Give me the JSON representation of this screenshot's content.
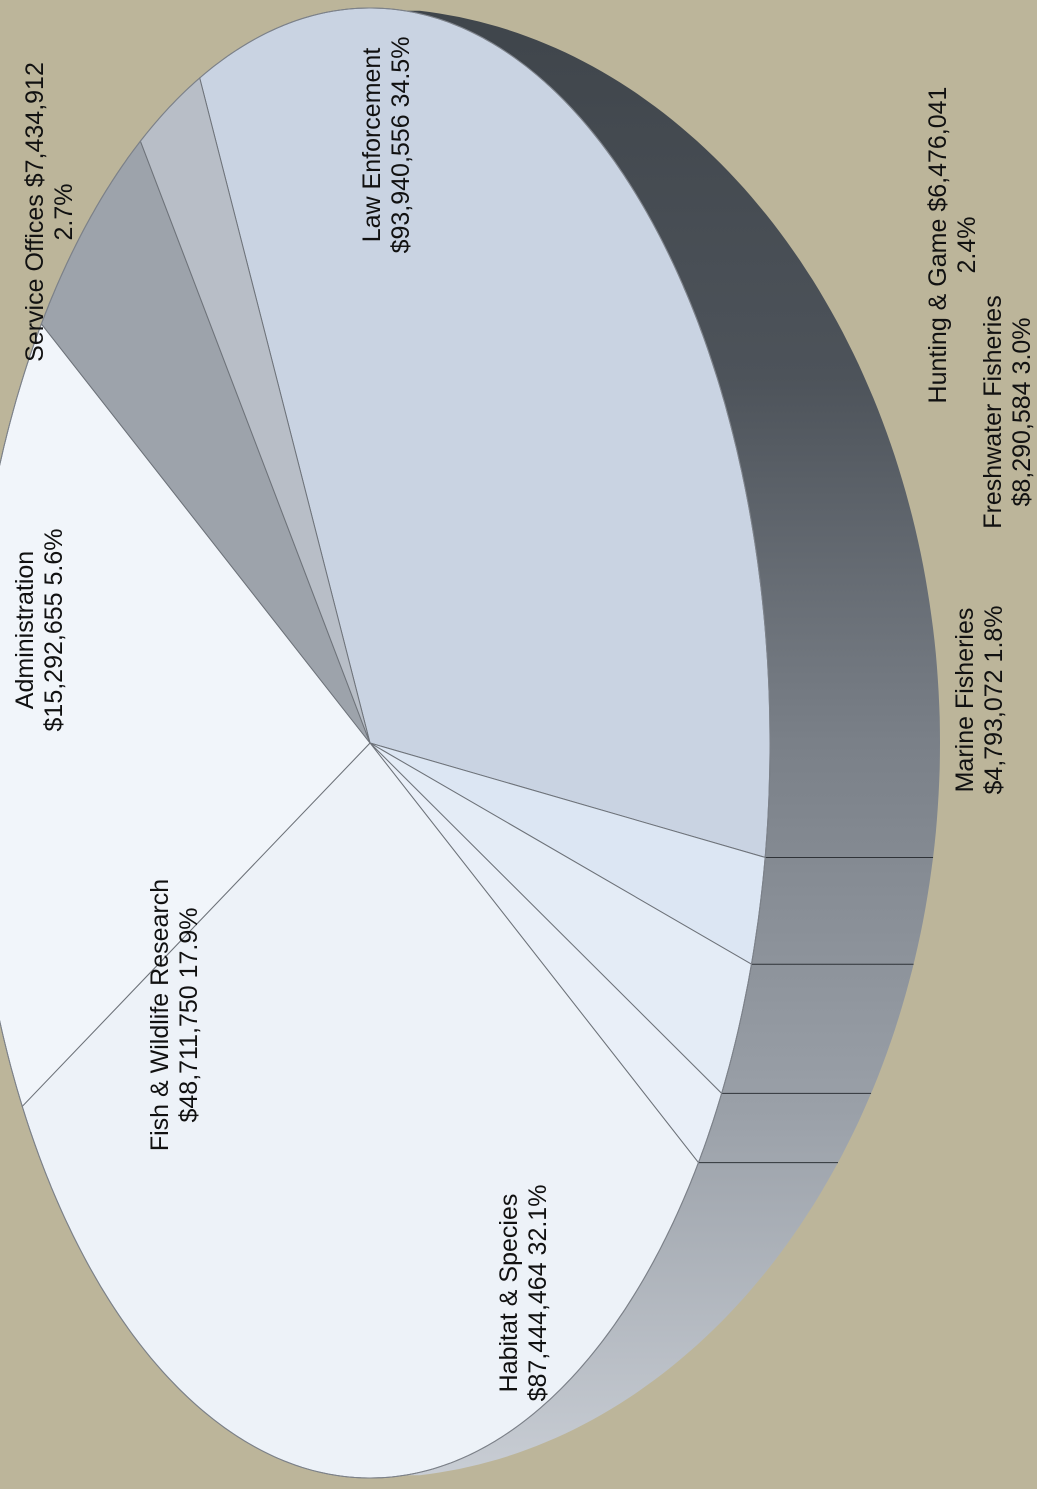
{
  "chart_data": {
    "type": "pie",
    "title": "",
    "slices": [
      {
        "label": "Law Enforcement",
        "amount": "$93,940,556",
        "percent": "34.5%",
        "value": 93940556,
        "color": "#c9d3e2"
      },
      {
        "label": "Hunting & Game",
        "amount": "$6,476,041",
        "percent": "2.4%",
        "value": 6476041,
        "color": "#dce6f3"
      },
      {
        "label": "Freshwater Fisheries",
        "amount": "$8,290,584",
        "percent": "3.0%",
        "value": 8290584,
        "color": "#e4ecf6"
      },
      {
        "label": "Marine Fisheries",
        "amount": "$4,793,072",
        "percent": "1.8%",
        "value": 4793072,
        "color": "#e9eff8"
      },
      {
        "label": "Habitat & Species",
        "amount": "$87,444,464",
        "percent": "32.1%",
        "value": 87444464,
        "color": "#edf2f8"
      },
      {
        "label": "Fish & Wildlife Research",
        "amount": "$48,711,750",
        "percent": "17.9%",
        "value": 48711750,
        "color": "#f1f5fa"
      },
      {
        "label": "Administration",
        "amount": "$15,292,655",
        "percent": "5.6%",
        "value": 15292655,
        "color": "#9da3ab"
      },
      {
        "label": "Service Offices",
        "amount": "$7,434,912",
        "percent": "2.7%",
        "value": 7434912,
        "color": "#b8bec7"
      }
    ],
    "orientation": "rotated 90° counter-clockwise, 3D tilted"
  }
}
